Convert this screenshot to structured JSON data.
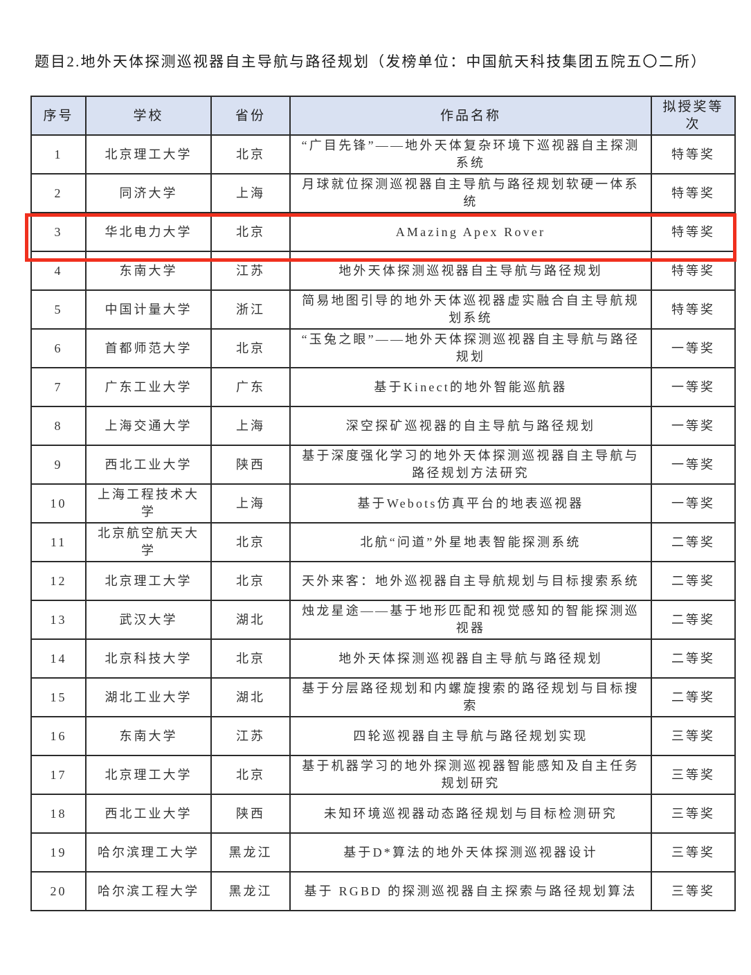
{
  "title": "题目2.地外天体探测巡视器自主导航与路径规划（发榜单位：中国航天科技集团五院五〇二所）",
  "columns": [
    "序号",
    "学校",
    "省份",
    "作品名称",
    "拟授奖等次"
  ],
  "highlight_color": "#f0301e",
  "header_bg": "#d9e1f2",
  "highlighted_row": 3,
  "rows": [
    {
      "no": "1",
      "school": "北京理工大学",
      "province": "北京",
      "work": "“广目先锋”——地外天体复杂环境下巡视器自主探测系统",
      "award": "特等奖"
    },
    {
      "no": "2",
      "school": "同济大学",
      "province": "上海",
      "work": "月球就位探测巡视器自主导航与路径规划软硬一体系统",
      "award": "特等奖"
    },
    {
      "no": "3",
      "school": "华北电力大学",
      "province": "北京",
      "work": "AMazing Apex Rover",
      "award": "特等奖"
    },
    {
      "no": "4",
      "school": "东南大学",
      "province": "江苏",
      "work": "地外天体探测巡视器自主导航与路径规划",
      "award": "特等奖"
    },
    {
      "no": "5",
      "school": "中国计量大学",
      "province": "浙江",
      "work": "简易地图引导的地外天体巡视器虚实融合自主导航规划系统",
      "award": "特等奖"
    },
    {
      "no": "6",
      "school": "首都师范大学",
      "province": "北京",
      "work": "“玉兔之眼”——地外天体探测巡视器自主导航与路径规划",
      "award": "一等奖"
    },
    {
      "no": "7",
      "school": "广东工业大学",
      "province": "广东",
      "work": "基于Kinect的地外智能巡航器",
      "award": "一等奖"
    },
    {
      "no": "8",
      "school": "上海交通大学",
      "province": "上海",
      "work": "深空探矿巡视器的自主导航与路径规划",
      "award": "一等奖"
    },
    {
      "no": "9",
      "school": "西北工业大学",
      "province": "陕西",
      "work": "基于深度强化学习的地外天体探测巡视器自主导航与路径规划方法研究",
      "award": "一等奖"
    },
    {
      "no": "10",
      "school": "上海工程技术大学",
      "province": "上海",
      "work": "基于Webots仿真平台的地表巡视器",
      "award": "一等奖"
    },
    {
      "no": "11",
      "school": "北京航空航天大学",
      "province": "北京",
      "work": "北航“问道”外星地表智能探测系统",
      "award": "二等奖"
    },
    {
      "no": "12",
      "school": "北京理工大学",
      "province": "北京",
      "work": "天外来客：地外巡视器自主导航规划与目标搜索系统",
      "award": "二等奖"
    },
    {
      "no": "13",
      "school": "武汉大学",
      "province": "湖北",
      "work": "烛龙星途——基于地形匹配和视觉感知的智能探测巡视器",
      "award": "二等奖"
    },
    {
      "no": "14",
      "school": "北京科技大学",
      "province": "北京",
      "work": "地外天体探测巡视器自主导航与路径规划",
      "award": "二等奖"
    },
    {
      "no": "15",
      "school": "湖北工业大学",
      "province": "湖北",
      "work": "基于分层路径规划和内螺旋搜索的路径规划与目标搜索",
      "award": "二等奖"
    },
    {
      "no": "16",
      "school": "东南大学",
      "province": "江苏",
      "work": "四轮巡视器自主导航与路径规划实现",
      "award": "三等奖"
    },
    {
      "no": "17",
      "school": "北京理工大学",
      "province": "北京",
      "work": "基于机器学习的地外探测巡视器智能感知及自主任务规划研究",
      "award": "三等奖"
    },
    {
      "no": "18",
      "school": "西北工业大学",
      "province": "陕西",
      "work": "未知环境巡视器动态路径规划与目标检测研究",
      "award": "三等奖"
    },
    {
      "no": "19",
      "school": "哈尔滨理工大学",
      "province": "黑龙江",
      "work": "基于D*算法的地外天体探测巡视器设计",
      "award": "三等奖"
    },
    {
      "no": "20",
      "school": "哈尔滨工程大学",
      "province": "黑龙江",
      "work": "基于 RGBD 的探测巡视器自主探索与路径规划算法",
      "award": "三等奖"
    }
  ]
}
